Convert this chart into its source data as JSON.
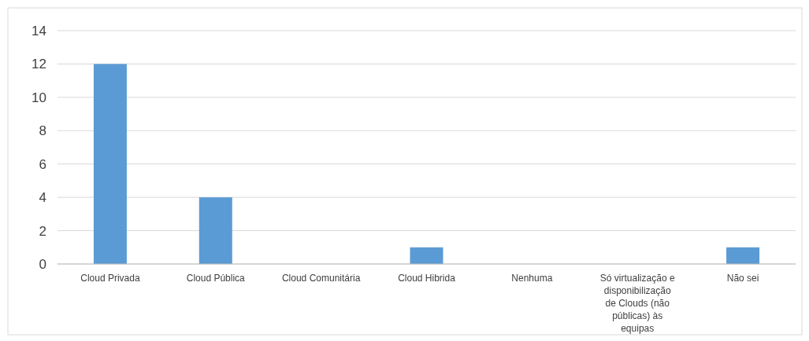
{
  "chart_data": {
    "type": "bar",
    "categories": [
      "Cloud Privada",
      "Cloud Pública",
      "Cloud Comunitária",
      "Cloud Hibrida",
      "Nenhuma",
      "Só virtualização e disponibilização de Clouds (não públicas) às equipas",
      "Não sei"
    ],
    "values": [
      12,
      4,
      0,
      1,
      0,
      0,
      1
    ],
    "color": "#5b9bd5",
    "ylim": [
      0,
      14
    ],
    "yticks": [
      0,
      2,
      4,
      6,
      8,
      10,
      12,
      14
    ],
    "grid": "y"
  }
}
